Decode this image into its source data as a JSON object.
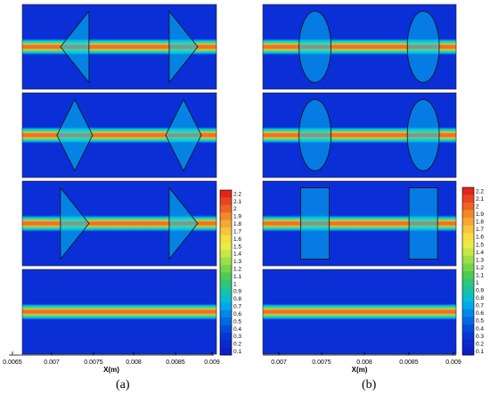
{
  "panels": [
    {
      "caption": "(a)",
      "x_axis": {
        "label": "X(m)",
        "ticks": [
          "0.0065",
          "0.007",
          "0.0075",
          "0.008",
          "0.0085",
          "0.009"
        ]
      },
      "rows": [
        {
          "shape": "trapezoid"
        },
        {
          "shape": "diamond"
        },
        {
          "shape": "triangle"
        },
        {
          "shape": "none"
        }
      ],
      "colorbar_ticks": [
        "2.2",
        "2.1",
        "2",
        "1.9",
        "1.8",
        "1.7",
        "1.6",
        "1.5",
        "1.4",
        "1.3",
        "1.2",
        "1.1",
        "1",
        "0.9",
        "0.8",
        "0.7",
        "0.6",
        "0.5",
        "0.4",
        "0.3",
        "0.2",
        "0.1"
      ]
    },
    {
      "caption": "(b)",
      "x_axis": {
        "label": "X(m)",
        "ticks": [
          "0.007",
          "0.0075",
          "0.008",
          "0.0085",
          "0.009"
        ]
      },
      "rows": [
        {
          "shape": "cylinder"
        },
        {
          "shape": "rounded"
        },
        {
          "shape": "square"
        },
        {
          "shape": "none"
        }
      ],
      "colorbar_ticks": [
        "2.2",
        "2.1",
        "2",
        "1.9",
        "1.8",
        "1.7",
        "1.6",
        "1.5",
        "1.4",
        "1.3",
        "1.2",
        "1.1",
        "1",
        "0.9",
        "0.8",
        "0.7",
        "0.6",
        "0.5",
        "0.4",
        "0.3",
        "0.2",
        "0.1"
      ]
    }
  ],
  "colors": {
    "background": "#0b2fd6",
    "cyan": "#00c8f0",
    "green": "#59d65a",
    "yellow": "#f5e33a",
    "orange": "#f79a2d",
    "red": "#e4402a",
    "colorbar": [
      "#e3241b",
      "#e9441f",
      "#ee6424",
      "#f28a28",
      "#f5a832",
      "#f7c43a",
      "#f6dd3e",
      "#e8ec44",
      "#c5e845",
      "#9ddf48",
      "#74d54b",
      "#4ccc52",
      "#2ec77b",
      "#19c2a3",
      "#07bdd0",
      "#00a8ea",
      "#0088ea",
      "#006ae3",
      "#004fdc",
      "#0637d6",
      "#0a29cf",
      "#0c20c6"
    ]
  }
}
